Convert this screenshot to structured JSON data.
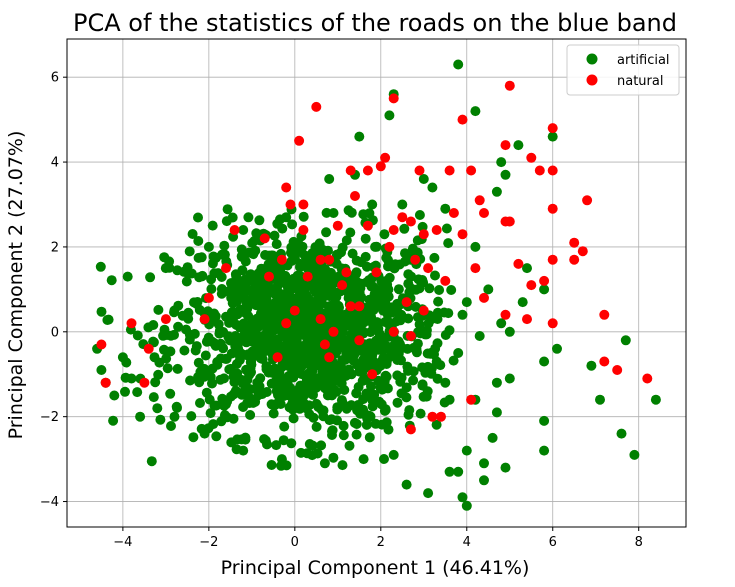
{
  "chart_data": {
    "type": "scatter",
    "title": "PCA of the statistics of the roads on the blue band",
    "xlabel": "Principal Component 1 (46.41%)",
    "ylabel": "Principal Component 2 (27.07%)",
    "xlim": [
      -5.3,
      9.1
    ],
    "ylim": [
      -4.6,
      6.9
    ],
    "xticks": [
      -4,
      -2,
      0,
      2,
      4,
      6,
      8
    ],
    "yticks": [
      -4,
      -2,
      0,
      2,
      4,
      6
    ],
    "tick_labels_x": [
      "−4",
      "−2",
      "0",
      "2",
      "4",
      "6",
      "8"
    ],
    "tick_labels_y": [
      "−4",
      "−2",
      "0",
      "2",
      "4",
      "6"
    ],
    "grid": true,
    "legend_position": "top-right",
    "series": [
      {
        "name": "artificial",
        "color": "#008000",
        "cluster": {
          "count": 1400,
          "center": [
            0.3,
            0.0
          ],
          "spread": [
            1.6,
            1.2
          ],
          "x_range": [
            -4.6,
            3.7
          ],
          "y_range": [
            -3.2,
            2.9
          ]
        },
        "points": [
          [
            3.8,
            6.3
          ],
          [
            2.3,
            5.6
          ],
          [
            4.2,
            5.2
          ],
          [
            2.2,
            5.1
          ],
          [
            1.5,
            4.6
          ],
          [
            6.0,
            4.6
          ],
          [
            5.2,
            4.4
          ],
          [
            4.8,
            4.0
          ],
          [
            4.9,
            3.7
          ],
          [
            1.4,
            3.7
          ],
          [
            0.8,
            3.6
          ],
          [
            3.0,
            3.6
          ],
          [
            4.7,
            3.3
          ],
          [
            3.2,
            3.4
          ],
          [
            2.5,
            3.0
          ],
          [
            3.5,
            2.9
          ],
          [
            4.2,
            2.0
          ],
          [
            5.4,
            1.5
          ],
          [
            5.8,
            1.0
          ],
          [
            4.5,
            1.0
          ],
          [
            4.0,
            0.7
          ],
          [
            3.9,
            0.4
          ],
          [
            5.3,
            0.7
          ],
          [
            4.8,
            0.2
          ],
          [
            5.0,
            0.0
          ],
          [
            4.3,
            -0.1
          ],
          [
            5.8,
            -0.7
          ],
          [
            6.1,
            -0.4
          ],
          [
            7.7,
            -0.2
          ],
          [
            6.9,
            -0.8
          ],
          [
            3.8,
            -0.5
          ],
          [
            3.3,
            -0.7
          ],
          [
            3.5,
            -1.2
          ],
          [
            4.7,
            -1.2
          ],
          [
            5.0,
            -1.1
          ],
          [
            3.6,
            -1.6
          ],
          [
            4.2,
            -1.6
          ],
          [
            4.7,
            -1.9
          ],
          [
            7.1,
            -1.6
          ],
          [
            8.4,
            -1.6
          ],
          [
            5.8,
            -2.1
          ],
          [
            7.6,
            -2.4
          ],
          [
            4.6,
            -2.5
          ],
          [
            5.8,
            -2.8
          ],
          [
            7.9,
            -2.9
          ],
          [
            4.0,
            -2.8
          ],
          [
            4.4,
            -3.1
          ],
          [
            4.9,
            -3.2
          ],
          [
            3.8,
            -3.3
          ],
          [
            4.4,
            -3.5
          ],
          [
            2.6,
            -3.6
          ],
          [
            3.1,
            -3.8
          ],
          [
            3.9,
            -3.9
          ],
          [
            4.0,
            -4.1
          ],
          [
            3.6,
            -3.3
          ],
          [
            -4.6,
            -0.4
          ],
          [
            -4.5,
            -0.9
          ],
          [
            -4.4,
            -1.2
          ],
          [
            -4.2,
            -1.5
          ],
          [
            -4.0,
            -0.6
          ],
          [
            -3.8,
            -1.1
          ],
          [
            -3.6,
            -2.0
          ],
          [
            -3.2,
            -1.8
          ],
          [
            -2.8,
            -2.0
          ],
          [
            -2.1,
            -2.4
          ],
          [
            -1.2,
            -2.8
          ],
          [
            -0.3,
            -3.0
          ],
          [
            0.7,
            -3.1
          ],
          [
            1.6,
            -3.0
          ],
          [
            2.3,
            -2.9
          ],
          [
            -2.0,
            2.0
          ],
          [
            -1.2,
            2.4
          ],
          [
            -0.2,
            2.7
          ],
          [
            0.9,
            2.8
          ],
          [
            1.8,
            3.0
          ]
        ]
      },
      {
        "name": "natural",
        "color": "#ff0000",
        "points": [
          [
            2.3,
            5.5
          ],
          [
            5.0,
            5.8
          ],
          [
            0.5,
            5.3
          ],
          [
            6.0,
            4.8
          ],
          [
            0.1,
            4.5
          ],
          [
            3.9,
            5.0
          ],
          [
            4.9,
            4.4
          ],
          [
            5.5,
            4.1
          ],
          [
            2.1,
            4.1
          ],
          [
            5.7,
            3.8
          ],
          [
            6.0,
            3.8
          ],
          [
            1.3,
            3.8
          ],
          [
            1.7,
            3.8
          ],
          [
            2.0,
            3.9
          ],
          [
            2.9,
            3.8
          ],
          [
            3.6,
            3.8
          ],
          [
            4.1,
            3.8
          ],
          [
            6.8,
            3.1
          ],
          [
            1.4,
            3.2
          ],
          [
            -0.2,
            3.4
          ],
          [
            -0.1,
            3.0
          ],
          [
            0.2,
            3.0
          ],
          [
            4.3,
            3.1
          ],
          [
            4.9,
            2.6
          ],
          [
            5.0,
            2.6
          ],
          [
            6.0,
            2.9
          ],
          [
            3.7,
            2.8
          ],
          [
            4.4,
            2.8
          ],
          [
            6.5,
            2.1
          ],
          [
            6.7,
            1.9
          ],
          [
            6.5,
            1.7
          ],
          [
            5.2,
            1.6
          ],
          [
            6.0,
            1.7
          ],
          [
            5.8,
            1.2
          ],
          [
            5.5,
            1.1
          ],
          [
            4.2,
            1.5
          ],
          [
            4.4,
            0.8
          ],
          [
            4.9,
            0.4
          ],
          [
            5.4,
            0.3
          ],
          [
            6.0,
            0.2
          ],
          [
            7.2,
            0.4
          ],
          [
            7.2,
            -0.7
          ],
          [
            7.5,
            -0.9
          ],
          [
            8.2,
            -1.1
          ],
          [
            3.4,
            -2.0
          ],
          [
            2.7,
            -2.3
          ],
          [
            1.8,
            -1.0
          ],
          [
            -4.5,
            -0.3
          ],
          [
            -4.4,
            -1.2
          ],
          [
            -3.8,
            0.2
          ],
          [
            -3.5,
            -1.2
          ],
          [
            -3.4,
            -0.4
          ],
          [
            -3.0,
            0.3
          ],
          [
            -2.1,
            0.3
          ],
          [
            -2.0,
            0.8
          ],
          [
            -1.6,
            1.5
          ],
          [
            -1.4,
            2.4
          ],
          [
            -0.6,
            1.3
          ],
          [
            -0.2,
            0.2
          ],
          [
            0.0,
            0.5
          ],
          [
            0.3,
            1.3
          ],
          [
            0.6,
            1.7
          ],
          [
            0.8,
            1.7
          ],
          [
            0.6,
            0.3
          ],
          [
            0.9,
            0.0
          ],
          [
            1.2,
            1.4
          ],
          [
            1.5,
            0.6
          ],
          [
            1.9,
            1.4
          ],
          [
            2.2,
            2.0
          ],
          [
            2.5,
            2.7
          ],
          [
            2.8,
            1.7
          ],
          [
            3.1,
            1.5
          ],
          [
            3.5,
            1.2
          ],
          [
            3.0,
            0.5
          ],
          [
            2.7,
            -0.1
          ],
          [
            2.3,
            0.0
          ],
          [
            1.5,
            -0.2
          ],
          [
            0.7,
            -0.3
          ],
          [
            1.0,
            2.5
          ],
          [
            1.7,
            2.5
          ],
          [
            2.3,
            2.4
          ],
          [
            2.7,
            2.6
          ],
          [
            3.3,
            2.4
          ],
          [
            3.0,
            2.3
          ],
          [
            -0.7,
            2.2
          ],
          [
            -0.3,
            1.7
          ],
          [
            1.1,
            1.1
          ],
          [
            0.8,
            -0.6
          ],
          [
            -0.4,
            -0.6
          ],
          [
            3.9,
            2.3
          ],
          [
            4.1,
            -1.6
          ],
          [
            3.2,
            -2.0
          ],
          [
            2.6,
            0.7
          ],
          [
            1.3,
            0.6
          ],
          [
            0.2,
            2.4
          ]
        ]
      }
    ]
  }
}
